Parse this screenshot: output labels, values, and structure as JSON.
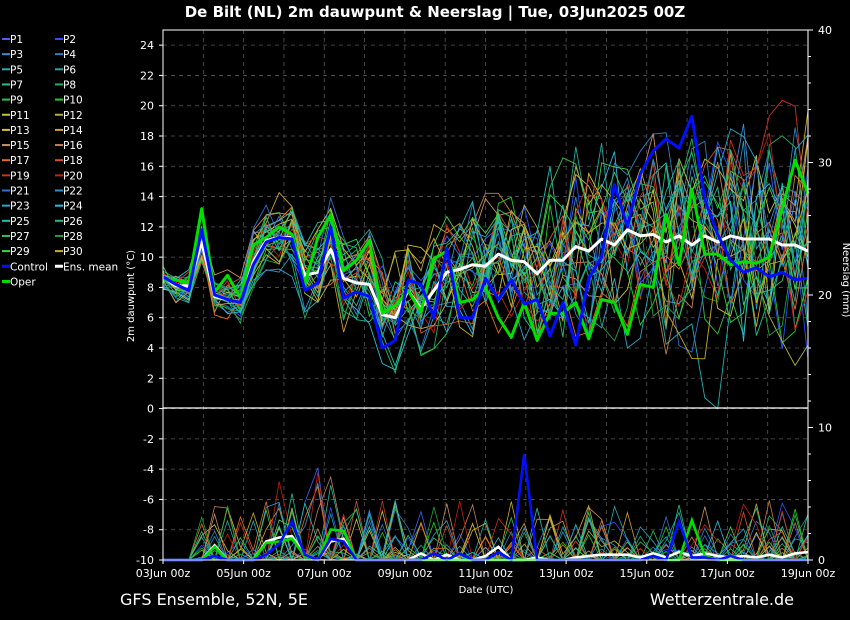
{
  "chart_data": {
    "type": "line",
    "title": "De Bilt  (NL)  2m dauwpunt & Neerslag | Tue, 03Jun2025 00Z",
    "ylabel": "2m dauwpunt (°C)",
    "ylabel_right": "Neerslag (mm)",
    "xlabel": "Date (UTC)",
    "footer_left": "GFS Ensemble, 52N, 5E",
    "footer_right": "Wetterzentrale.de",
    "ylim": [
      -10,
      25
    ],
    "y_ticks": [
      "24",
      "22",
      "20",
      "18",
      "16",
      "14",
      "12",
      "10",
      "8",
      "6",
      "4",
      "2",
      "0",
      "-2",
      "-4",
      "-6",
      "-8",
      "-10"
    ],
    "y_right_ticks": [
      "40",
      "30",
      "20",
      "10",
      "0"
    ],
    "x_ticks": [
      "03Jun 00z",
      "05Jun 00z",
      "07Jun 00z",
      "09Jun 00z",
      "11Jun 00z",
      "13Jun 00z",
      "15Jun 00z",
      "17Jun 00z",
      "19Jun 00z"
    ],
    "grid": true,
    "legend": [
      {
        "name": "P1",
        "color": "#4060ff"
      },
      {
        "name": "P2",
        "color": "#2a50ff"
      },
      {
        "name": "P3",
        "color": "#3a8cd0"
      },
      {
        "name": "P4",
        "color": "#2f7fc0"
      },
      {
        "name": "P5",
        "color": "#20b0b0"
      },
      {
        "name": "P6",
        "color": "#20a8a0"
      },
      {
        "name": "P7",
        "color": "#20c090"
      },
      {
        "name": "P8",
        "color": "#22b060"
      },
      {
        "name": "P9",
        "color": "#30c050"
      },
      {
        "name": "P10",
        "color": "#22cc22"
      },
      {
        "name": "P11",
        "color": "#c8c040"
      },
      {
        "name": "P12",
        "color": "#b0b040"
      },
      {
        "name": "P13",
        "color": "#d4c030"
      },
      {
        "name": "P14",
        "color": "#d0a030"
      },
      {
        "name": "P15",
        "color": "#c89060"
      },
      {
        "name": "P16",
        "color": "#c08050"
      },
      {
        "name": "P17",
        "color": "#e07020"
      },
      {
        "name": "P18",
        "color": "#d05030"
      },
      {
        "name": "P19",
        "color": "#d03020"
      },
      {
        "name": "P20",
        "color": "#c02010"
      },
      {
        "name": "P21",
        "color": "#3070d0"
      },
      {
        "name": "P22",
        "color": "#2a90c8"
      },
      {
        "name": "P23",
        "color": "#2aa8c8"
      },
      {
        "name": "P24",
        "color": "#30b8d8"
      },
      {
        "name": "P25",
        "color": "#20c0b0"
      },
      {
        "name": "P26",
        "color": "#20b890"
      },
      {
        "name": "P27",
        "color": "#30c060"
      },
      {
        "name": "P28",
        "color": "#20a040"
      },
      {
        "name": "P29",
        "color": "#40d040"
      },
      {
        "name": "P30",
        "color": "#c8b020"
      },
      {
        "name": "Control",
        "color": "#0010ff"
      },
      {
        "name": "Ens. mean",
        "color": "#ffffff"
      },
      {
        "name": "Oper",
        "color": "#00e000"
      }
    ],
    "series": [
      {
        "name": "Control",
        "color": "#0010ff",
        "values": [
          8.7,
          8.2,
          7.8,
          11.8,
          7.5,
          7.2,
          7.0,
          9.5,
          11.0,
          11.3,
          11.2,
          7.8,
          8.3,
          12.0,
          7.3,
          7.7,
          7.4,
          4.0,
          4.5,
          8.5,
          8.2,
          6.0,
          10.6,
          6.0,
          6.0,
          8.6,
          7.2,
          8.5,
          6.9,
          7.2,
          4.8,
          7.0,
          4.2,
          8.6,
          10.0,
          14.8,
          12.0,
          15.5,
          17.0,
          17.8,
          17.2,
          19.3,
          13.8,
          11.5,
          9.8,
          9.0,
          9.3,
          8.7,
          9.0,
          8.5,
          8.6
        ]
      },
      {
        "name": "Oper",
        "color": "#00e000",
        "values": [
          8.5,
          8.5,
          8.3,
          13.2,
          7.7,
          8.8,
          7.3,
          10.8,
          11.3,
          12.0,
          11.5,
          8.2,
          11.3,
          12.8,
          9.1,
          9.8,
          11.1,
          6.3,
          6.8,
          7.8,
          6.4,
          9.9,
          10.4,
          7.0,
          7.2,
          8.0,
          6.0,
          4.7,
          7.0,
          4.5,
          6.3,
          6.3,
          7.0,
          4.6,
          7.2,
          7.0,
          4.9,
          8.2,
          8.0,
          12.8,
          9.5,
          14.5,
          10.2,
          10.2,
          9.5,
          9.7,
          9.6,
          10.0,
          13.2,
          16.4,
          14.2
        ]
      },
      {
        "name": "Ens. mean",
        "color": "#ffffff",
        "values": [
          8.7,
          8.1,
          8.1,
          11.0,
          7.4,
          7.2,
          7.0,
          9.7,
          11.1,
          11.3,
          11.3,
          8.8,
          9.0,
          10.5,
          8.6,
          8.3,
          8.2,
          6.2,
          6.0,
          7.8,
          6.6,
          7.8,
          9.0,
          9.2,
          9.5,
          9.4,
          10.2,
          9.8,
          9.7,
          8.9,
          9.8,
          9.8,
          10.7,
          10.4,
          11.2,
          10.8,
          11.8,
          11.4,
          11.5,
          11.0,
          11.4,
          10.8,
          11.4,
          11.0,
          11.4,
          11.2,
          11.2,
          11.2,
          10.8,
          10.8,
          10.4
        ]
      }
    ],
    "precip_series": [
      {
        "name": "Control",
        "color": "#0010ff",
        "values": [
          0,
          0,
          0,
          0,
          0.3,
          0,
          0,
          0,
          0.4,
          1.2,
          2.9,
          0.4,
          0,
          1.6,
          1.4,
          0,
          0,
          0,
          0,
          0,
          0,
          0.5,
          0,
          0.5,
          0,
          0,
          0.6,
          0,
          8,
          0,
          0,
          0,
          0,
          0,
          0,
          0,
          0,
          0,
          0.3,
          0,
          2.9,
          0.2,
          0.2,
          0,
          0.3,
          0,
          0,
          0,
          0,
          0,
          0
        ]
      },
      {
        "name": "Oper",
        "color": "#00e000",
        "values": [
          0,
          0,
          0,
          0,
          1,
          0,
          0,
          0,
          1.3,
          1.4,
          1.6,
          0.3,
          0,
          2.3,
          2.2,
          0,
          0,
          0,
          0,
          0,
          0,
          0,
          0,
          0,
          0,
          0,
          0,
          0,
          0,
          0,
          0,
          0,
          0,
          0,
          0,
          0,
          0,
          0,
          0.3,
          0,
          0,
          3.0,
          0.3,
          0,
          0,
          0,
          0,
          0,
          0,
          0,
          0
        ]
      },
      {
        "name": "Ens. mean",
        "color": "#ffffff",
        "values": [
          0,
          0,
          0,
          0,
          1.1,
          0,
          0,
          0,
          1.4,
          1.7,
          1.8,
          0.4,
          0,
          1.4,
          1.6,
          0,
          0,
          0,
          0,
          0,
          0.5,
          0,
          0.4,
          0,
          0,
          0.3,
          1.0,
          0,
          0,
          0.2,
          0,
          0,
          0.2,
          0.3,
          0.4,
          0.4,
          0.4,
          0.2,
          0.5,
          0.2,
          0.6,
          0.3,
          0.5,
          0.3,
          0.2,
          0.3,
          0.2,
          0.4,
          0.2,
          0.5,
          0.6
        ]
      }
    ]
  }
}
